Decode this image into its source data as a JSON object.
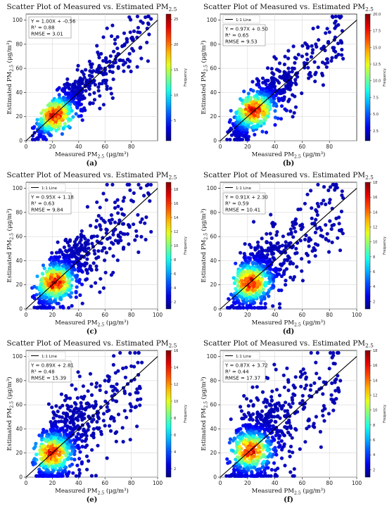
{
  "figure": {
    "panels": [
      {
        "id": "a",
        "caption": "(a)",
        "title": "Scatter Plot of Measured vs. Estimated PM",
        "title_sub": "2.5",
        "xlabel": "Measured PM",
        "xlabel_sub": "2.5",
        "xlabel_unit": " (μg/m³)",
        "ylabel": "Estimated PM",
        "ylabel_sub": "2.5",
        "ylabel_unit": " (μg/m³)",
        "legend": "",
        "stats": [
          "Y = 1.00X + -0.56",
          "R² = 0.88",
          "RMSE = 3.01"
        ],
        "colorbar_label": "Frequency",
        "colorbar_ticks": [
          5,
          10,
          15,
          20,
          25
        ]
      },
      {
        "id": "b",
        "caption": "(b)",
        "title": "Scatter Plot of Measured vs. Estimated PM",
        "title_sub": "2.5",
        "xlabel": "Measured PM",
        "xlabel_sub": "2.5",
        "xlabel_unit": " (μg/m³)",
        "ylabel": "Estimated PM",
        "ylabel_sub": "2.5",
        "ylabel_unit": " (μg/m³)",
        "legend": "1:1 Line",
        "stats": [
          "Y = 0.97X + 0.50",
          "R² = 0.65",
          "RMSE = 9.53"
        ],
        "colorbar_label": "Frequency",
        "colorbar_ticks": [
          "2.5",
          "5.0",
          "7.5",
          "10.0",
          "12.5",
          "15.0",
          "17.5",
          "20.0"
        ]
      },
      {
        "id": "c",
        "caption": "(c)",
        "title": "Scatter Plot of Measured vs. Estimated PM",
        "title_sub": "2.5",
        "xlabel": "Measured PM",
        "xlabel_sub": "2.5",
        "xlabel_unit": " (μg/m³)",
        "ylabel": "Estimated PM",
        "ylabel_sub": "2.5",
        "ylabel_unit": " (μg/m³)",
        "legend": "1:1 Line",
        "stats": [
          "Y = 0.95X + 1.18",
          "R² = 0.63",
          "RMSE = 9.84"
        ],
        "colorbar_label": "Frequency",
        "colorbar_ticks": [
          2,
          4,
          6,
          8,
          10,
          12,
          14,
          16,
          18
        ]
      },
      {
        "id": "d",
        "caption": "(d)",
        "title": "Scatter Plot of Measured vs. Estimated PM",
        "title_sub": "2.5",
        "xlabel": "Measured PM",
        "xlabel_sub": "2.5",
        "xlabel_unit": " (μg/m³)",
        "ylabel": "Estimated PM",
        "ylabel_sub": "2.5",
        "ylabel_unit": " (μg/m³)",
        "legend": "1:1 Line",
        "stats": [
          "Y = 0.91X + 2.30",
          "R² = 0.59",
          "RMSE = 10.41"
        ],
        "colorbar_label": "Frequency",
        "colorbar_ticks": [
          2,
          4,
          6,
          8,
          10,
          12,
          14,
          16,
          18
        ]
      },
      {
        "id": "e",
        "caption": "(e)",
        "title": "Scatter Plot of Measured vs. Estimated PM",
        "title_sub": "2.5",
        "xlabel": "Measured PM",
        "xlabel_sub": "2.5",
        "xlabel_unit": " (μg/m³)",
        "ylabel": "Estimated PM",
        "ylabel_sub": "2.5",
        "ylabel_unit": " (μg/m³)",
        "legend": "1:1 Line",
        "stats": [
          "Y = 0.89X + 2.81",
          "R² = 0.48",
          "RMSE = 15.39"
        ],
        "colorbar_label": "Frequency",
        "colorbar_ticks": [
          2,
          4,
          6,
          8,
          10,
          12,
          14,
          16
        ]
      },
      {
        "id": "f",
        "caption": "(f)",
        "title": "Scatter Plot of Measured vs. Estimated PM",
        "title_sub": "2.5",
        "xlabel": "Measured PM",
        "xlabel_sub": "2.5",
        "xlabel_unit": " (μg/m³)",
        "ylabel": "Estimated PM",
        "ylabel_sub": "2.5",
        "ylabel_unit": " (μg/m³)",
        "legend": "1:1 Line",
        "stats": [
          "Y = 0.87X + 3.72",
          "R² = 0.44",
          "RMSE = 17.37"
        ],
        "colorbar_label": "Frequency",
        "colorbar_ticks": [
          2,
          4,
          6,
          8,
          10,
          12,
          14,
          16,
          18
        ]
      }
    ]
  },
  "chart_data": [
    {
      "type": "scatter",
      "panel": "a",
      "xlim": [
        0,
        100
      ],
      "ylim": [
        0,
        105
      ],
      "x_ticks": [
        0,
        20,
        40,
        60,
        80
      ],
      "y_ticks": [
        0,
        20,
        40,
        60,
        80,
        100
      ],
      "grid": true,
      "reference_line": "1:1",
      "fit": {
        "slope": 1.0,
        "intercept": -0.56
      },
      "r2": 0.88,
      "rmse": 3.01,
      "freq_max": 26,
      "colormap": "jet",
      "x_range": [
        5,
        95
      ],
      "density_peak": [
        22,
        21
      ],
      "sample_points": [
        [
          10,
          8
        ],
        [
          15,
          14
        ],
        [
          20,
          20
        ],
        [
          22,
          21
        ],
        [
          25,
          24
        ],
        [
          30,
          28
        ],
        [
          35,
          36
        ],
        [
          40,
          38
        ],
        [
          45,
          46
        ],
        [
          50,
          48
        ],
        [
          55,
          58
        ],
        [
          60,
          60
        ],
        [
          65,
          62
        ],
        [
          70,
          72
        ],
        [
          75,
          80
        ],
        [
          80,
          85
        ],
        [
          85,
          90
        ],
        [
          95,
          101
        ]
      ]
    },
    {
      "type": "scatter",
      "panel": "b",
      "xlim": [
        0,
        100
      ],
      "ylim": [
        0,
        105
      ],
      "x_ticks": [
        0,
        20,
        40,
        60,
        80
      ],
      "y_ticks": [
        0,
        20,
        40,
        60,
        80,
        100
      ],
      "grid": true,
      "reference_line": "1:1",
      "fit": {
        "slope": 0.97,
        "intercept": 0.5
      },
      "r2": 0.65,
      "rmse": 9.53,
      "freq_max": 20,
      "colormap": "jet",
      "x_range": [
        5,
        90
      ],
      "density_peak": [
        25,
        25
      ],
      "sample_points": [
        [
          8,
          10
        ],
        [
          12,
          6
        ],
        [
          15,
          25
        ],
        [
          20,
          18
        ],
        [
          25,
          25
        ],
        [
          30,
          40
        ],
        [
          35,
          28
        ],
        [
          40,
          45
        ],
        [
          45,
          35
        ],
        [
          50,
          60
        ],
        [
          55,
          48
        ],
        [
          60,
          70
        ],
        [
          65,
          55
        ],
        [
          70,
          80
        ],
        [
          75,
          65
        ],
        [
          80,
          90
        ],
        [
          85,
          70
        ],
        [
          90,
          68
        ]
      ]
    },
    {
      "type": "scatter",
      "panel": "c",
      "xlim": [
        0,
        100
      ],
      "ylim": [
        0,
        105
      ],
      "x_ticks": [
        0,
        20,
        40,
        60,
        80,
        100
      ],
      "y_ticks": [
        0,
        20,
        40,
        60,
        80,
        100
      ],
      "grid": true,
      "reference_line": "1:1",
      "fit": {
        "slope": 0.95,
        "intercept": 1.18
      },
      "r2": 0.63,
      "rmse": 9.84,
      "freq_max": 19,
      "colormap": "jet",
      "x_range": [
        3,
        95
      ],
      "density_peak": [
        22,
        22
      ],
      "sample_points": [
        [
          5,
          10
        ],
        [
          10,
          5
        ],
        [
          15,
          25
        ],
        [
          20,
          18
        ],
        [
          22,
          22
        ],
        [
          30,
          40
        ],
        [
          35,
          30
        ],
        [
          40,
          50
        ],
        [
          45,
          38
        ],
        [
          50,
          60
        ],
        [
          55,
          48
        ],
        [
          60,
          72
        ],
        [
          65,
          55
        ],
        [
          70,
          85
        ],
        [
          75,
          62
        ],
        [
          80,
          90
        ],
        [
          85,
          78
        ],
        [
          95,
          64
        ]
      ]
    },
    {
      "type": "scatter",
      "panel": "d",
      "xlim": [
        0,
        100
      ],
      "ylim": [
        0,
        105
      ],
      "x_ticks": [
        0,
        20,
        40,
        60,
        80,
        100
      ],
      "y_ticks": [
        0,
        20,
        40,
        60,
        80,
        100
      ],
      "grid": true,
      "reference_line": "1:1",
      "fit": {
        "slope": 0.91,
        "intercept": 2.3
      },
      "r2": 0.59,
      "rmse": 10.41,
      "freq_max": 18,
      "colormap": "jet",
      "x_range": [
        5,
        90
      ],
      "density_peak": [
        22,
        22
      ],
      "sample_points": [
        [
          8,
          12
        ],
        [
          12,
          6
        ],
        [
          15,
          28
        ],
        [
          20,
          16
        ],
        [
          22,
          22
        ],
        [
          28,
          40
        ],
        [
          35,
          30
        ],
        [
          40,
          52
        ],
        [
          45,
          36
        ],
        [
          50,
          62
        ],
        [
          55,
          46
        ],
        [
          60,
          70
        ],
        [
          65,
          52
        ],
        [
          70,
          82
        ],
        [
          75,
          60
        ],
        [
          80,
          88
        ],
        [
          85,
          75
        ],
        [
          90,
          92
        ]
      ]
    },
    {
      "type": "scatter",
      "panel": "e",
      "xlim": [
        0,
        100
      ],
      "ylim": [
        0,
        105
      ],
      "x_ticks": [
        0,
        20,
        40,
        60,
        80,
        100
      ],
      "y_ticks": [
        0,
        20,
        40,
        60,
        80,
        100
      ],
      "grid": true,
      "reference_line": "1:1",
      "fit": {
        "slope": 0.89,
        "intercept": 2.81
      },
      "r2": 0.48,
      "rmse": 15.39,
      "freq_max": 16,
      "colormap": "jet",
      "x_range": [
        2,
        88
      ],
      "density_peak": [
        20,
        20
      ],
      "sample_points": [
        [
          5,
          12
        ],
        [
          10,
          4
        ],
        [
          15,
          30
        ],
        [
          20,
          20
        ],
        [
          25,
          10
        ],
        [
          30,
          45
        ],
        [
          35,
          25
        ],
        [
          40,
          55
        ],
        [
          45,
          30
        ],
        [
          50,
          68
        ],
        [
          55,
          40
        ],
        [
          60,
          80
        ],
        [
          65,
          50
        ],
        [
          70,
          88
        ],
        [
          75,
          55
        ],
        [
          80,
          92
        ],
        [
          85,
          70
        ],
        [
          88,
          95
        ]
      ]
    },
    {
      "type": "scatter",
      "panel": "f",
      "xlim": [
        0,
        100
      ],
      "ylim": [
        0,
        105
      ],
      "x_ticks": [
        0,
        20,
        40,
        60,
        80,
        100
      ],
      "y_ticks": [
        0,
        20,
        40,
        60,
        80,
        100
      ],
      "grid": true,
      "reference_line": "1:1",
      "fit": {
        "slope": 0.87,
        "intercept": 3.72
      },
      "r2": 0.44,
      "rmse": 17.37,
      "freq_max": 18,
      "colormap": "jet",
      "x_range": [
        3,
        88
      ],
      "density_peak": [
        22,
        22
      ],
      "sample_points": [
        [
          5,
          15
        ],
        [
          10,
          4
        ],
        [
          15,
          32
        ],
        [
          20,
          18
        ],
        [
          25,
          8
        ],
        [
          30,
          48
        ],
        [
          35,
          22
        ],
        [
          40,
          60
        ],
        [
          45,
          30
        ],
        [
          50,
          72
        ],
        [
          55,
          40
        ],
        [
          60,
          85
        ],
        [
          65,
          48
        ],
        [
          70,
          95
        ],
        [
          75,
          55
        ],
        [
          80,
          90
        ],
        [
          85,
          65
        ],
        [
          88,
          80
        ]
      ]
    }
  ]
}
